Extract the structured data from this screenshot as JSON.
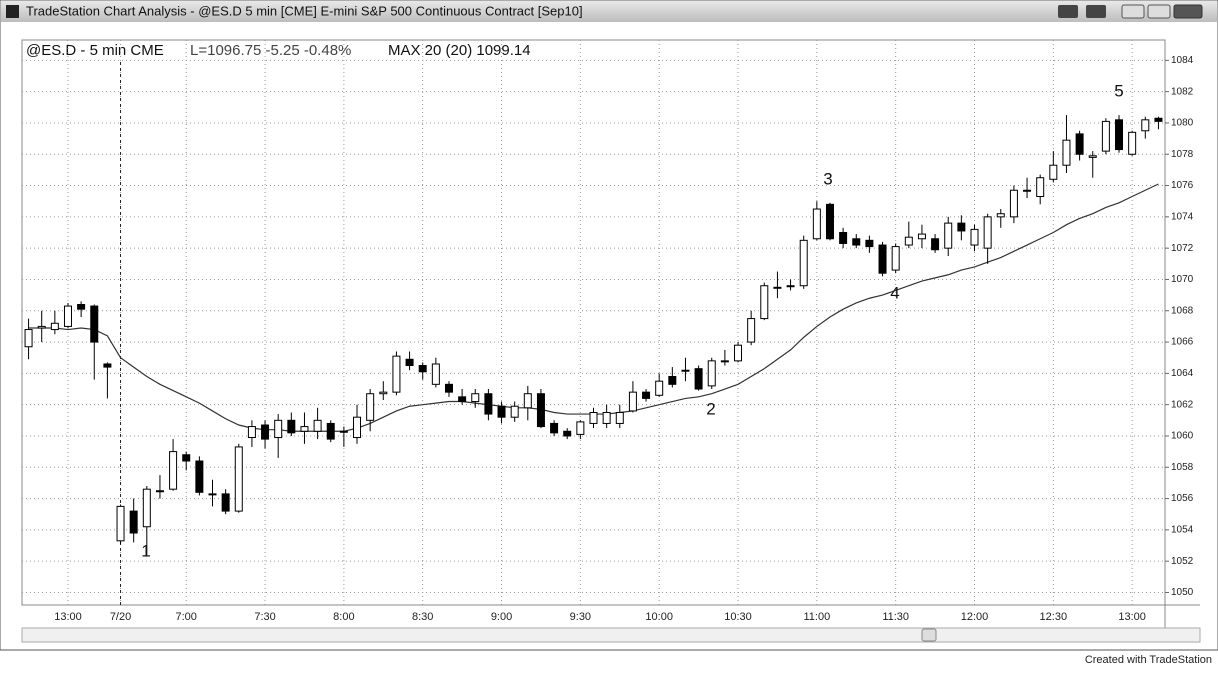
{
  "window": {
    "title": "TradeStation Chart Analysis - @ES.D 5 min [CME] E-mini S&P 500 Continuous Contract [Sep10]"
  },
  "chart_data": {
    "type": "candlestick",
    "title": "@ES.D - 5 min CME",
    "last_label": "L=1096.75 -5.25 -0.48%",
    "indicator_label": "MAX 20 (20) 1099.14",
    "categories": [
      null,
      null,
      null,
      "13:00",
      null,
      null,
      null,
      "7/20",
      null,
      null,
      null,
      null,
      "7:00",
      null,
      null,
      null,
      null,
      null,
      "7:30",
      null,
      null,
      null,
      null,
      null,
      "8:00",
      null,
      null,
      null,
      null,
      null,
      "8:30",
      null,
      null,
      null,
      null,
      null,
      "9:00",
      null,
      null,
      null,
      null,
      null,
      "9:30",
      null,
      null,
      null,
      null,
      null,
      "10:00",
      null,
      null,
      null,
      null,
      null,
      "10:30",
      null,
      null,
      null,
      null,
      null,
      "11:00",
      null,
      null,
      null,
      null,
      null,
      "11:30",
      null,
      null,
      null,
      null,
      null,
      "12:00",
      null,
      null,
      null,
      null,
      null,
      "12:30",
      null,
      null,
      null,
      null,
      null,
      "13:00",
      null,
      null
    ],
    "open": [
      1065.7,
      1066.9,
      1066.8,
      1067,
      1068.4,
      1068.3,
      1064.6,
      1053.3,
      1055.2,
      1054.2,
      1056.5,
      1056.6,
      1058.8,
      1058.4,
      1056.3,
      1056.3,
      1055.2,
      1059.9,
      1060.7,
      1059.9,
      1061,
      1060.3,
      1060.3,
      1060.8,
      1060.3,
      1059.9,
      1061,
      1062.7,
      1062.8,
      1064.9,
      1064.5,
      1063.3,
      1063.3,
      1062.5,
      1062.2,
      1062.7,
      1061.9,
      1061.2,
      1061.8,
      1062.7,
      1060.8,
      1060.3,
      1060.1,
      1060.8,
      1060.8,
      1060.8,
      1061.6,
      1062.8,
      1062.6,
      1063.8,
      1064.2,
      1064.3,
      1063.2,
      1064.8,
      1064.8,
      1066,
      1067.5,
      1069.5,
      1069.6,
      1069.6,
      1072.6,
      1074.8,
      1073,
      1072.6,
      1072.5,
      1072.2,
      1070.6,
      1072.2,
      1072.6,
      1072.6,
      1072,
      1073.6,
      1072.2,
      1072,
      1074,
      1074,
      1075.7,
      1075.3,
      1076.4,
      1077.3,
      1079.3,
      1077.8,
      1078.2,
      1080.2,
      1078,
      1079.5,
      1080.3
    ],
    "high": [
      1067.5,
      1068,
      1068,
      1068.5,
      1068.6,
      1068.4,
      1064.7,
      1055.6,
      1056,
      1056.8,
      1057.5,
      1059.8,
      1059,
      1058.7,
      1057.2,
      1056.6,
      1059.5,
      1061,
      1061,
      1061.4,
      1061.5,
      1061.5,
      1061.8,
      1061,
      1060.6,
      1062,
      1063,
      1063.5,
      1065.4,
      1065.4,
      1064.7,
      1065,
      1063.5,
      1063,
      1063,
      1063,
      1062.2,
      1062.2,
      1063.2,
      1063,
      1061,
      1060.5,
      1061,
      1061.8,
      1062,
      1062,
      1063.5,
      1063,
      1064,
      1064.4,
      1065,
      1064.5,
      1065,
      1065.5,
      1066,
      1068,
      1069.8,
      1070.5,
      1070,
      1072.8,
      1075,
      1074.9,
      1073.3,
      1072.9,
      1072.8,
      1072.4,
      1072.3,
      1073.7,
      1073.5,
      1072.9,
      1074,
      1074.1,
      1073.5,
      1074.2,
      1074.5,
      1076,
      1076.5,
      1076.7,
      1078.2,
      1080.5,
      1079.5,
      1078.2,
      1080.3,
      1080.5,
      1079.5,
      1080.4,
      1080.4
    ],
    "low": [
      1064.9,
      1066,
      1066.5,
      1066.9,
      1067.6,
      1063.6,
      1062.4,
      1053.1,
      1053.2,
      1052.4,
      1056,
      1056.5,
      1057.8,
      1056.2,
      1055.5,
      1055,
      1055.1,
      1059.3,
      1059.2,
      1058.6,
      1060,
      1059.5,
      1059.8,
      1059.6,
      1059.3,
      1059.5,
      1060.3,
      1062.3,
      1062.6,
      1064.2,
      1063.6,
      1063.1,
      1062.5,
      1062,
      1061.8,
      1061,
      1060.8,
      1060.9,
      1061,
      1060.5,
      1060,
      1059.8,
      1059.8,
      1060.5,
      1060.5,
      1060.5,
      1061.5,
      1062.2,
      1062.5,
      1063.1,
      1063.5,
      1062.9,
      1063,
      1064.5,
      1064.7,
      1065.8,
      1067.4,
      1068.8,
      1069.3,
      1069.4,
      1072.5,
      1072.5,
      1072,
      1072,
      1071.7,
      1070.2,
      1070.4,
      1072,
      1072,
      1071.7,
      1071.5,
      1072.5,
      1071.8,
      1071,
      1073.3,
      1073.6,
      1075.2,
      1074.8,
      1076.2,
      1076.8,
      1077.6,
      1076.5,
      1078,
      1078.1,
      1077.9,
      1079,
      1079.6
    ],
    "close": [
      1066.8,
      1067,
      1067.2,
      1068.3,
      1068.1,
      1066,
      1064.4,
      1055.5,
      1053.8,
      1056.6,
      1056.5,
      1059,
      1058.4,
      1056.4,
      1056.3,
      1055.2,
      1059.3,
      1060.6,
      1059.8,
      1061,
      1060.2,
      1060.6,
      1061,
      1059.8,
      1060.3,
      1061.2,
      1062.7,
      1062.8,
      1065.1,
      1064.5,
      1064.1,
      1064.6,
      1062.8,
      1062.2,
      1062.7,
      1061.4,
      1061.2,
      1061.9,
      1062.7,
      1060.6,
      1060.2,
      1060,
      1060.9,
      1061.5,
      1061.5,
      1061.5,
      1062.8,
      1062.4,
      1063.5,
      1063.3,
      1064.2,
      1063,
      1064.8,
      1064.8,
      1065.8,
      1067.5,
      1069.6,
      1069.5,
      1069.6,
      1072.5,
      1074.5,
      1072.6,
      1072.3,
      1072.2,
      1072.1,
      1070.4,
      1072.1,
      1072.7,
      1072.9,
      1071.9,
      1073.6,
      1073.1,
      1073.2,
      1074,
      1074.2,
      1075.7,
      1075.7,
      1076.5,
      1077.3,
      1078.9,
      1078,
      1077.9,
      1080.1,
      1078.3,
      1079.4,
      1080.2,
      1080.1
    ],
    "up_color": "#ffffff",
    "down_color": "#000000",
    "moving_average": {
      "color": "#333333",
      "values": [
        1066.9,
        1066.9,
        1066.9,
        1066.8,
        1066.9,
        1066.8,
        1066.4,
        1065,
        1064.4,
        1063.8,
        1063.3,
        1062.9,
        1062.5,
        1062.1,
        1061.6,
        1061.1,
        1060.7,
        1060.5,
        1060.4,
        1060.4,
        1060.3,
        1060.3,
        1060.3,
        1060.3,
        1060.3,
        1060.5,
        1060.8,
        1061.2,
        1061.6,
        1061.9,
        1062,
        1062.1,
        1062.2,
        1062.2,
        1062.1,
        1062,
        1061.9,
        1061.8,
        1061.8,
        1061.7,
        1061.5,
        1061.4,
        1061.4,
        1061.4,
        1061.4,
        1061.5,
        1061.6,
        1061.8,
        1062,
        1062.2,
        1062.4,
        1062.5,
        1062.7,
        1063,
        1063.3,
        1063.8,
        1064.3,
        1064.9,
        1065.5,
        1066.3,
        1067,
        1067.6,
        1068.1,
        1068.5,
        1068.8,
        1069,
        1069.3,
        1069.6,
        1069.9,
        1070.1,
        1070.3,
        1070.6,
        1070.8,
        1071.1,
        1071.4,
        1071.8,
        1072.2,
        1072.6,
        1073,
        1073.5,
        1073.9,
        1074.2,
        1074.6,
        1074.9,
        1075.3,
        1075.7,
        1076.1
      ]
    },
    "ylim": [
      1049.2,
      1085.3
    ],
    "yticks": [
      1050,
      1052,
      1054,
      1056,
      1058,
      1060,
      1062,
      1064,
      1066,
      1068,
      1070,
      1072,
      1074,
      1076,
      1078,
      1080,
      1082,
      1084
    ],
    "grid": true,
    "annotations": [
      "1",
      "2",
      "3",
      "4",
      "5"
    ]
  },
  "footer": "Created with TradeStation"
}
